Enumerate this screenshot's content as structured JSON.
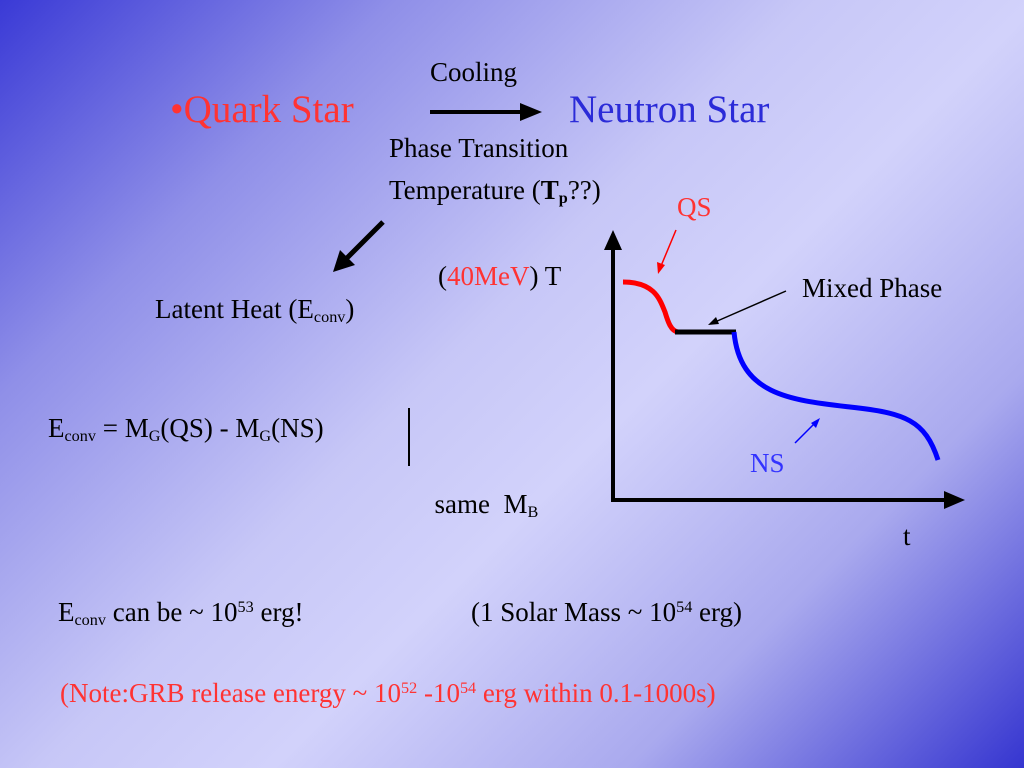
{
  "header": {
    "cooling": "Cooling",
    "bullet": "•",
    "quark_star": "Quark Star",
    "neutron_star": "Neutron Star",
    "phase_transition": "Phase Transition",
    "temperature_prefix": "Temperature (",
    "tp_main": "T",
    "tp_sub": "p",
    "temperature_suffix": "??)"
  },
  "latent": {
    "prefix": "Latent Heat (E",
    "sub": "conv",
    "suffix": ")"
  },
  "equation": {
    "e": "E",
    "e_sub": "conv",
    "eq": " = M",
    "g1": "G",
    "qs": "(QS) - M",
    "g2": "G",
    "ns": "(NS)",
    "same": "same  M",
    "b": "B"
  },
  "plot": {
    "temp_open": "(",
    "temp_value": "40MeV",
    "temp_close": ") T",
    "qs_label": "QS",
    "mixed_phase": "Mixed Phase",
    "ns_label": "NS",
    "t_label": "t"
  },
  "bottom": {
    "e": "E",
    "e_sub": "conv",
    "can_be": " can be ~ 10",
    "exp1": "53",
    "erg1": " erg!",
    "solar_prefix": "(1 Solar Mass ~ 10",
    "exp2": "54",
    "erg2": " erg)"
  },
  "note": {
    "prefix": "(Note:GRB release energy ~ 10",
    "exp1": "52",
    "mid": " -10",
    "exp2": "54",
    "suffix": " erg within 0.1-1000s)"
  },
  "colors": {
    "red_text": "#ff3333",
    "blue_text": "#3333ff",
    "qs_curve": "#ff0000",
    "ns_curve": "#0000ff"
  }
}
